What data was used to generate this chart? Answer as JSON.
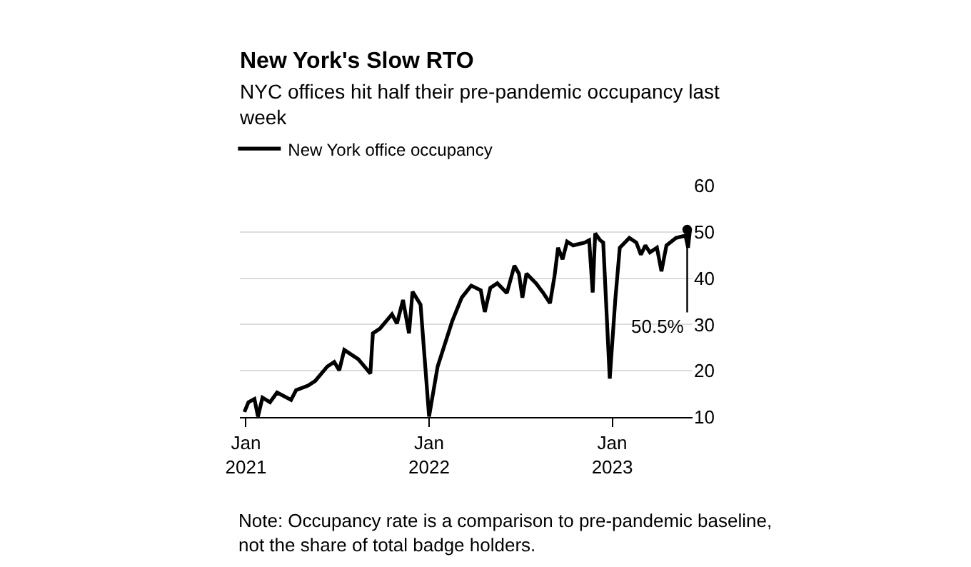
{
  "chart_data": {
    "type": "line",
    "title": "New York's Slow RTO",
    "subtitle": "NYC offices hit half their pre-pandemic occupancy last week",
    "x": [
      "2020-12-29",
      "2021-01-06",
      "2021-01-18",
      "2021-01-25",
      "2021-02-03",
      "2021-02-18",
      "2021-03-04",
      "2021-04-01",
      "2021-04-11",
      "2021-05-05",
      "2021-05-19",
      "2021-06-12",
      "2021-06-26",
      "2021-07-06",
      "2021-07-16",
      "2021-08-13",
      "2021-09-06",
      "2021-09-11",
      "2021-09-25",
      "2021-10-19",
      "2021-10-29",
      "2021-11-10",
      "2021-11-22",
      "2021-11-29",
      "2021-12-15",
      "2022-01-01",
      "2022-01-18",
      "2022-02-16",
      "2022-03-07",
      "2022-03-26",
      "2022-04-14",
      "2022-04-22",
      "2022-05-03",
      "2022-05-17",
      "2022-06-05",
      "2022-06-20",
      "2022-06-29",
      "2022-07-06",
      "2022-07-14",
      "2022-08-02",
      "2022-08-16",
      "2022-08-30",
      "2022-09-08",
      "2022-09-15",
      "2022-09-24",
      "2022-10-03",
      "2022-10-15",
      "2022-11-07",
      "2022-11-16",
      "2022-11-23",
      "2022-11-28",
      "2022-12-08",
      "2022-12-14",
      "2022-12-27",
      "2023-01-07",
      "2023-01-16",
      "2023-02-04",
      "2023-02-18",
      "2023-02-27",
      "2023-03-08",
      "2023-03-17",
      "2023-03-31",
      "2023-04-09",
      "2023-04-19",
      "2023-05-08",
      "2023-05-27",
      "2023-06-01",
      "2023-06-05"
    ],
    "series": [
      {
        "name": "New York office occupancy",
        "color": "#000000",
        "values": [
          11.1,
          13.2,
          13.9,
          10.1,
          14.2,
          13.2,
          15.3,
          13.7,
          15.8,
          16.8,
          17.8,
          20.9,
          21.9,
          20.1,
          24.5,
          22.5,
          19.4,
          28.1,
          29.1,
          32.2,
          30.2,
          35.3,
          28.1,
          37.1,
          34.3,
          10.1,
          20.9,
          30.7,
          35.8,
          38.4,
          37.4,
          32.7,
          37.9,
          38.9,
          36.8,
          42.7,
          41.0,
          35.8,
          41.0,
          38.9,
          36.9,
          34.6,
          40.5,
          46.6,
          44.1,
          47.9,
          47.1,
          47.7,
          48.2,
          36.9,
          49.7,
          48.2,
          47.7,
          18.3,
          35.3,
          46.6,
          48.7,
          47.7,
          45.1,
          47.1,
          45.6,
          46.6,
          41.5,
          47.1,
          48.7,
          49.2,
          46.6,
          50.5
        ]
      }
    ],
    "xlim": [
      "2020-12-20",
      "2023-06-10"
    ],
    "xticks": [
      {
        "value": "2021-01-01",
        "label": "Jan\n2021"
      },
      {
        "value": "2022-01-01",
        "label": "Jan\n2022"
      },
      {
        "value": "2023-01-01",
        "label": "Jan\n2023"
      }
    ],
    "ylim": [
      10,
      60
    ],
    "yticks": [
      10,
      20,
      30,
      40,
      50,
      60
    ],
    "grid": "y",
    "legend": "top left",
    "annotations": [
      {
        "text": "50.5%",
        "x": "2023-06-05",
        "y": 50.5
      },
      "Note: Occupancy rate is a comparison to pre-pandemic baseline, not the share of total badge holders."
    ]
  }
}
